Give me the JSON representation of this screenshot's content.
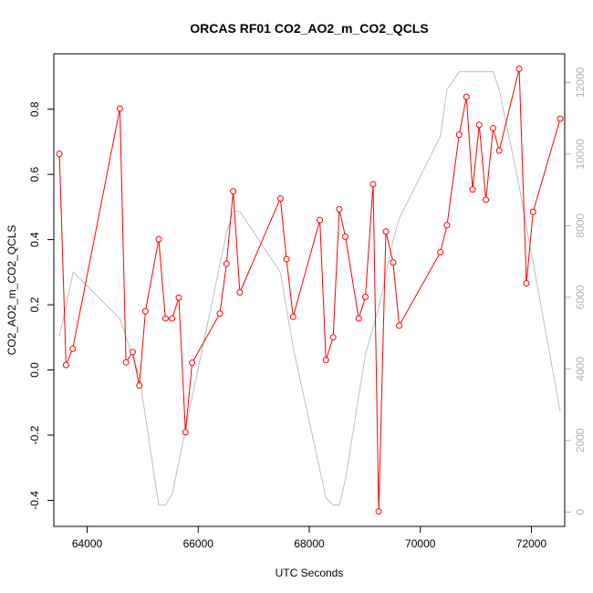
{
  "chart_data": {
    "type": "line",
    "title": "ORCAS RF01 CO2_AO2_m_CO2_QCLS",
    "xlabel": "UTC Seconds",
    "ylabel": "CO2_AO2_m_CO2_QCLS",
    "xlim": [
      63400,
      72600
    ],
    "ylim": [
      -0.48,
      0.97
    ],
    "y2lim": [
      -400,
      12800
    ],
    "x_ticks": [
      64000,
      66000,
      68000,
      70000,
      72000
    ],
    "y_ticks": [
      -0.4,
      -0.2,
      0.0,
      0.2,
      0.4,
      0.6,
      0.8
    ],
    "y_tick_labels": [
      "-0.4",
      "-0.2",
      "0.0",
      "0.2",
      "0.4",
      "0.6",
      "0.8"
    ],
    "y2_ticks": [
      0,
      2000,
      4000,
      6000,
      8000,
      10000,
      12000
    ],
    "colors": {
      "primary": "#ff0000",
      "secondary": "#bebebe"
    },
    "series": [
      {
        "role": "primary",
        "marker": "open-circle",
        "x": [
          63500,
          63620,
          63740,
          64590,
          64700,
          64820,
          64940,
          65050,
          65290,
          65410,
          65530,
          65650,
          65770,
          65890,
          66390,
          66510,
          66630,
          66750,
          67480,
          67590,
          67710,
          68190,
          68300,
          68430,
          68540,
          68650,
          68890,
          69010,
          69150,
          69250,
          69380,
          69510,
          69620,
          70360,
          70480,
          70700,
          70830,
          70940,
          71060,
          71180,
          71310,
          71420,
          71780,
          71910,
          72030,
          72520
        ],
        "y": [
          0.663,
          0.015,
          0.065,
          0.802,
          0.023,
          0.055,
          -0.048,
          0.18,
          0.401,
          0.158,
          0.158,
          0.222,
          -0.191,
          0.022,
          0.173,
          0.326,
          0.548,
          0.238,
          0.526,
          0.34,
          0.163,
          0.46,
          0.03,
          0.1,
          0.493,
          0.409,
          0.158,
          0.224,
          0.57,
          -0.434,
          0.425,
          0.33,
          0.136,
          0.361,
          0.444,
          0.722,
          0.838,
          0.554,
          0.752,
          0.522,
          0.742,
          0.673,
          0.924,
          0.266,
          0.485,
          0.771
        ]
      },
      {
        "role": "secondary",
        "axis": "right",
        "x": [
          63500,
          63750,
          64590,
          64940,
          65290,
          65410,
          65530,
          65890,
          66510,
          66630,
          66750,
          67480,
          67710,
          68300,
          68430,
          68540,
          68650,
          69010,
          69250,
          69510,
          69620,
          70360,
          70480,
          70700,
          70830,
          71310,
          71420,
          71780,
          72520
        ],
        "y": [
          4900,
          6700,
          5400,
          3800,
          200,
          200,
          500,
          3200,
          7800,
          8400,
          8400,
          6700,
          4600,
          400,
          200,
          200,
          900,
          4400,
          5700,
          7600,
          8200,
          10500,
          11800,
          12300,
          12300,
          12300,
          11800,
          9100,
          2800
        ]
      }
    ]
  }
}
